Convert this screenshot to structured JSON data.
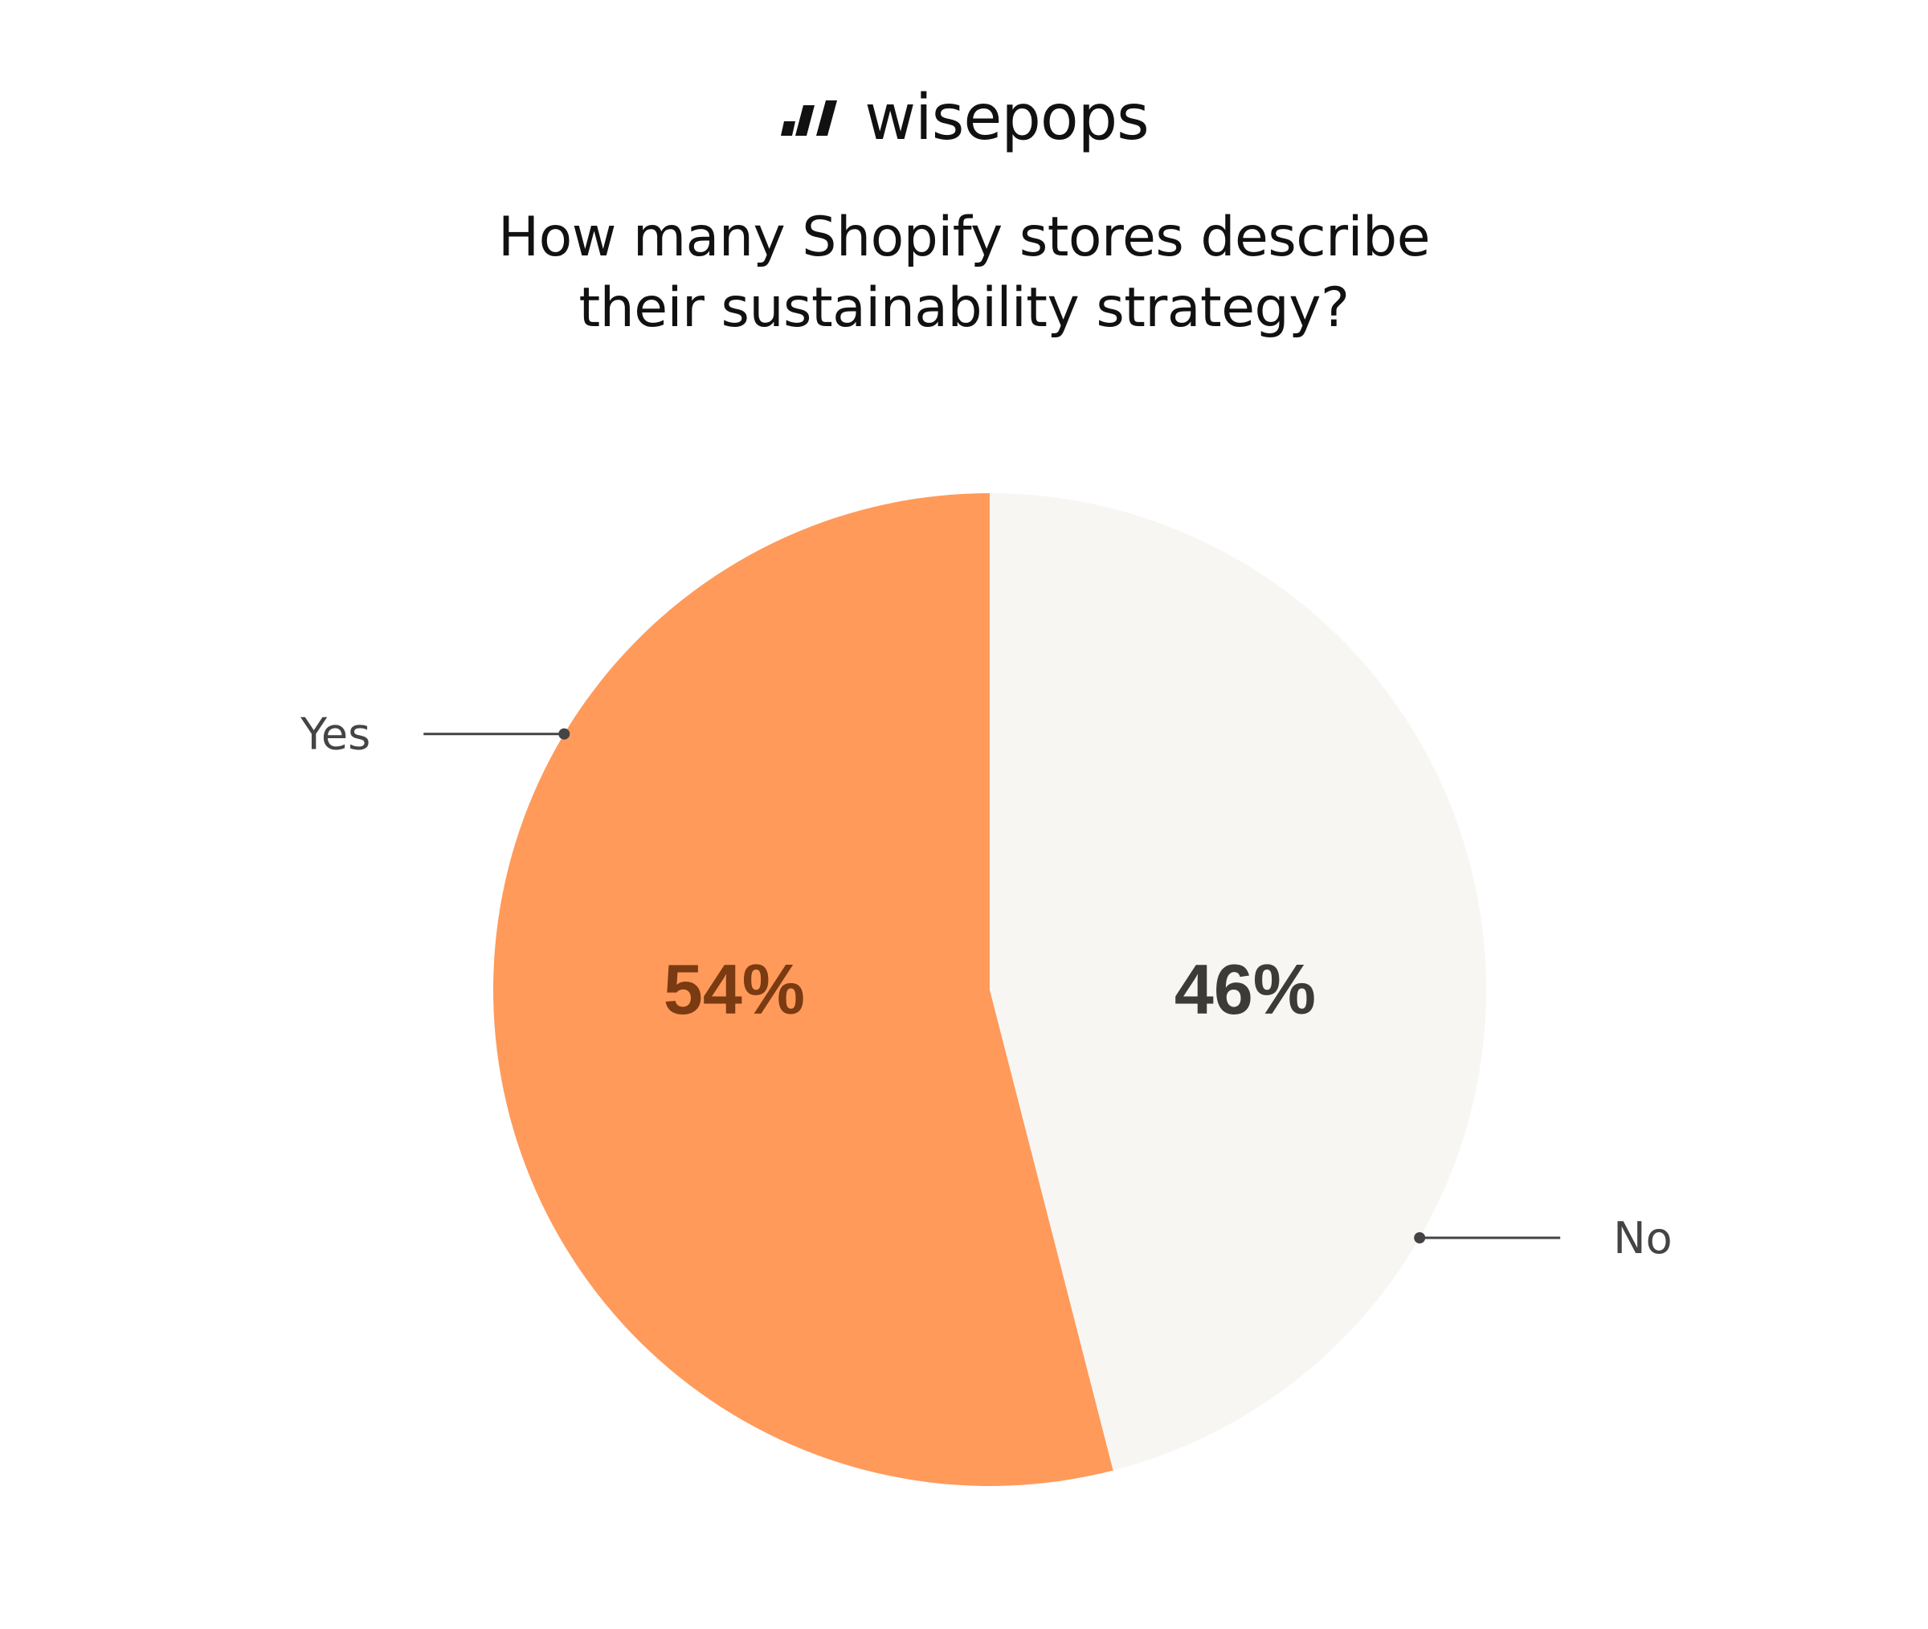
{
  "brand": {
    "name": "wisepops",
    "logo_icon": "wisepops-logo-icon"
  },
  "chart_data": {
    "type": "pie",
    "title": "How many Shopify stores describe their sustainability strategy?",
    "title_lines": [
      "How many Shopify stores describe",
      "their sustainability strategy?"
    ],
    "categories": [
      "Yes",
      "No"
    ],
    "values": [
      54,
      46
    ],
    "value_labels": [
      "54%",
      "46%"
    ],
    "colors": [
      "#FF9A5A",
      "#F7F6F3"
    ],
    "label_colors": [
      "#7A3A12",
      "#3D3B38"
    ],
    "legend": "none",
    "start_angle_deg": 0,
    "direction": "counter-clockwise"
  }
}
